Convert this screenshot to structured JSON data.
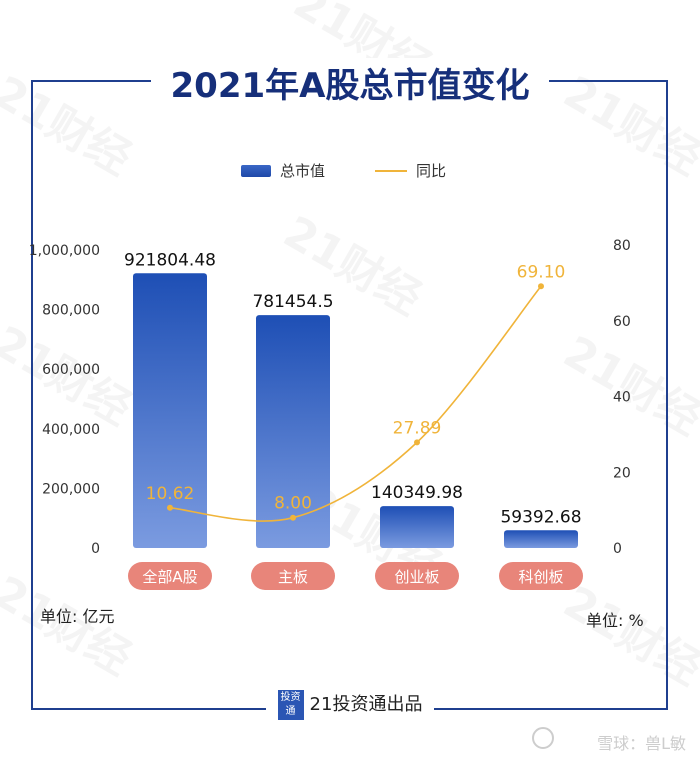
{
  "title": "2021年A股总市值变化",
  "legend": {
    "bar_label": "总市值",
    "line_label": "同比"
  },
  "units": {
    "left": "单位: 亿元",
    "right": "单位: %"
  },
  "footer": {
    "logo_text": "投资通",
    "text": "21投资通出品"
  },
  "credit": "雪球：兽L敏",
  "watermark": "21财经",
  "colors": {
    "bar_top": "#1e4fb5",
    "bar_bottom": "#6f90d8",
    "line": "#f0b43a",
    "label_pill": "#e8857a",
    "title": "#162f7a",
    "frame": "#1f3f8f"
  },
  "chart_data": {
    "type": "bar",
    "categories": [
      "全部A股",
      "主板",
      "创业板",
      "科创板"
    ],
    "series": [
      {
        "name": "总市值",
        "type": "bar",
        "axis": "left",
        "values": [
          921804.48,
          781454.5,
          140349.98,
          59392.68
        ]
      },
      {
        "name": "同比",
        "type": "line",
        "axis": "right",
        "values": [
          10.62,
          8.0,
          27.89,
          69.1
        ]
      }
    ],
    "data_labels_bar": [
      "921804.48",
      "781454.5",
      "140349.98",
      "59392.68"
    ],
    "data_labels_line": [
      "10.62",
      "8.00",
      "27.89",
      "69.10"
    ],
    "y_left": {
      "ylim": [
        0,
        1000000
      ],
      "ticks": [
        "0",
        "200,000",
        "400,000",
        "600,000",
        "800,000",
        "1,000,000"
      ],
      "tick_values": [
        0,
        200000,
        400000,
        600000,
        800000,
        1000000
      ]
    },
    "y_right": {
      "ylim": [
        0,
        80
      ],
      "ticks": [
        "0",
        "20",
        "40",
        "60",
        "80"
      ],
      "tick_values": [
        0,
        20,
        40,
        60,
        80
      ]
    },
    "grid": false,
    "legend_position": "top-center"
  }
}
